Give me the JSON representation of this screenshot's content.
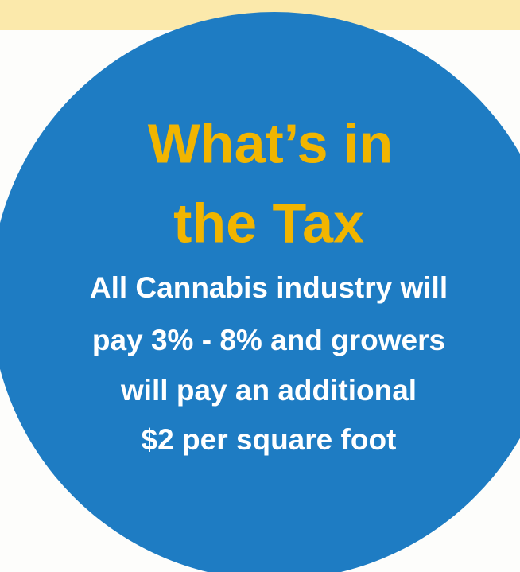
{
  "heading": [
    "What’s in",
    "the Tax"
  ],
  "body": [
    "All Cannabis industry will",
    "pay 3% - 8% and growers",
    "will pay an additional",
    "$2 per square foot"
  ]
}
